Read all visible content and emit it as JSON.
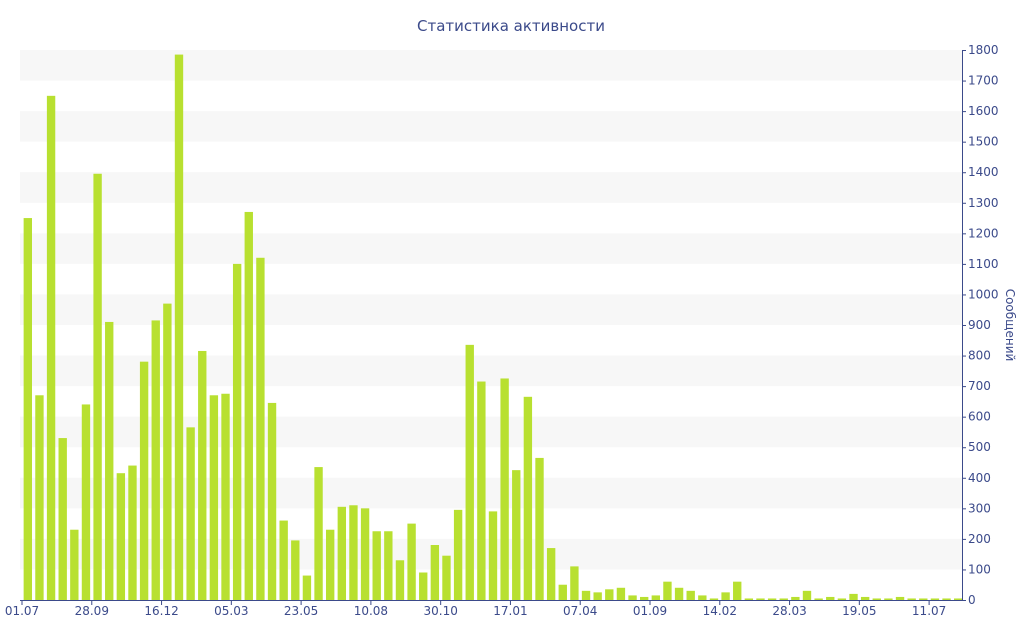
{
  "chart_data": {
    "type": "bar",
    "title": "Статистика активности",
    "xlabel": "",
    "ylabel": "Сообщений",
    "ylim": [
      0,
      1800
    ],
    "yticks": [
      0,
      100,
      200,
      300,
      400,
      500,
      600,
      700,
      800,
      900,
      1000,
      1100,
      1200,
      1300,
      1400,
      1500,
      1600,
      1700,
      1800
    ],
    "y_axis_position": "right",
    "grid": "alternating horizontal bands",
    "legend": "none",
    "bar_color": "#b8e030",
    "band_color": "#f7f7f7",
    "axis_color": "#3b4a8a",
    "x_tick_labels": [
      {
        "label": "01.07",
        "index": 0
      },
      {
        "label": "28.09",
        "index": 6
      },
      {
        "label": "16.12",
        "index": 12
      },
      {
        "label": "05.03",
        "index": 18
      },
      {
        "label": "23.05",
        "index": 24
      },
      {
        "label": "10.08",
        "index": 30
      },
      {
        "label": "30.10",
        "index": 36
      },
      {
        "label": "17.01",
        "index": 42
      },
      {
        "label": "07.04",
        "index": 48
      },
      {
        "label": "01.09",
        "index": 54
      },
      {
        "label": "14.02",
        "index": 60
      },
      {
        "label": "28.03",
        "index": 66
      },
      {
        "label": "19.05",
        "index": 72
      },
      {
        "label": "11.07",
        "index": 78
      }
    ],
    "values": [
      1250,
      670,
      1650,
      530,
      230,
      640,
      1395,
      910,
      415,
      440,
      780,
      915,
      970,
      1785,
      565,
      815,
      670,
      675,
      1100,
      1270,
      1120,
      645,
      260,
      195,
      80,
      435,
      230,
      305,
      310,
      300,
      225,
      225,
      130,
      250,
      90,
      180,
      145,
      295,
      835,
      715,
      290,
      725,
      425,
      665,
      465,
      170,
      50,
      110,
      30,
      25,
      35,
      40,
      15,
      10,
      15,
      60,
      40,
      30,
      15,
      5,
      25,
      60,
      5,
      5,
      5,
      5,
      10,
      30,
      5,
      10,
      5,
      20,
      10,
      5,
      5,
      10,
      5,
      5,
      5,
      5,
      5
    ]
  }
}
